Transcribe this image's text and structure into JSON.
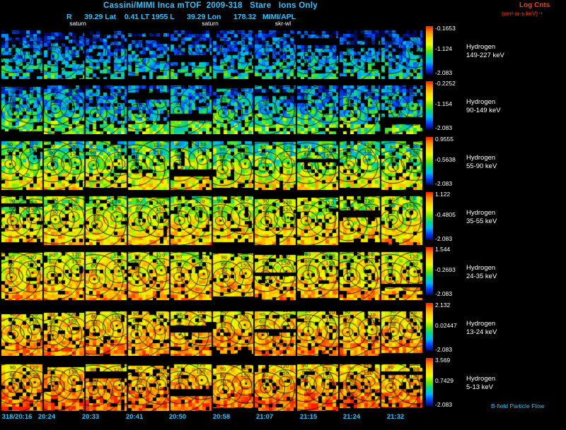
{
  "colors": {
    "background": "#000000",
    "cyan_text": "#2cc5ff",
    "red_text": "#ff3c00",
    "white_text": "#ffffff"
  },
  "header": {
    "title": "Cassini/MIMI Inca mTOF  2009-318   Stare   Ions Only",
    "log_units_line1": "Log Cnts",
    "log_units_line2": "(cm²-sr-s-keV)⁻¹",
    "status_line": "R      39.29 Lat    0.41 LT 1955 L      39.29 Lon      178.32   MIMI/APL"
  },
  "annotations": [
    {
      "label": "saturn",
      "x": 110
    },
    {
      "label": "saturn",
      "x": 297
    },
    {
      "label": "skr-wl",
      "x": 400
    }
  ],
  "footer": {
    "flow_label": "B-field Particle Flow"
  },
  "chart_data": {
    "type": "heatmap",
    "title": "Cassini/MIMI Inca mTOF 2009-318 Stare Ions Only",
    "colorbar_title": "Log Cnts (cm²-sr-s-keV)⁻¹",
    "contour_levels": [
      30,
      60,
      90,
      120,
      150
    ],
    "x_ticks": [
      "318/20:16",
      "20:24",
      "20:33",
      "20:41",
      "20:50",
      "20:58",
      "21:07",
      "21:15",
      "21:24",
      "21:32"
    ],
    "colorbar_colors_top_to_bottom": [
      "#ff1e00",
      "#ff8f00",
      "#ffd800",
      "#e8ff00",
      "#6fe800",
      "#00d890",
      "#00b4ff",
      "#0040ff",
      "#000660"
    ],
    "rows": [
      {
        "species": "Hydrogen",
        "energy": "149-227 keV",
        "scale_top": "-0.1653",
        "scale_mid": "-1.124",
        "scale_bottom": "-2.083",
        "render": {
          "v_top": 0.04,
          "v_bottom": 0.4,
          "noise": 0.16,
          "dropout": 0.3,
          "top_black": 6
        }
      },
      {
        "species": "Hydrogen",
        "energy": "90-149 keV",
        "scale_top": "-0.2252",
        "scale_mid": "-1.154",
        "scale_bottom": "-2.083",
        "render": {
          "v_top": 0.14,
          "v_bottom": 0.52,
          "noise": 0.2,
          "dropout": 0.17,
          "top_black": 6
        }
      },
      {
        "species": "Hydrogen",
        "energy": "55-90 keV",
        "scale_top": "0.9555",
        "scale_mid": "-0.5638",
        "scale_bottom": "-2.083",
        "render": {
          "v_top": 0.36,
          "v_bottom": 0.72,
          "noise": 0.2,
          "dropout": 0.13,
          "top_black": 6
        }
      },
      {
        "species": "Hydrogen",
        "energy": "35-55 keV",
        "scale_top": "1.122",
        "scale_mid": "-0.4805",
        "scale_bottom": "-2.083",
        "render": {
          "v_top": 0.5,
          "v_bottom": 0.8,
          "noise": 0.18,
          "dropout": 0.13,
          "top_black": 6
        }
      },
      {
        "species": "Hydrogen",
        "energy": "24-35 keV",
        "scale_top": "1.544",
        "scale_mid": "-0.2693",
        "scale_bottom": "-2.083",
        "render": {
          "v_top": 0.58,
          "v_bottom": 0.85,
          "noise": 0.16,
          "dropout": 0.14,
          "top_black": 7
        }
      },
      {
        "species": "Hydrogen",
        "energy": "13-24 keV",
        "scale_top": "2.132",
        "scale_mid": "0.02447",
        "scale_bottom": "-2.083",
        "render": {
          "v_top": 0.64,
          "v_bottom": 0.9,
          "noise": 0.15,
          "dropout": 0.15,
          "top_black": 12
        }
      },
      {
        "species": "Hydrogen",
        "energy": "5-13 keV",
        "scale_top": "3.569",
        "scale_mid": "0.7429",
        "scale_bottom": "-2.083",
        "render": {
          "v_top": 0.7,
          "v_bottom": 0.95,
          "noise": 0.14,
          "dropout": 0.13,
          "top_black": 9
        }
      }
    ]
  }
}
